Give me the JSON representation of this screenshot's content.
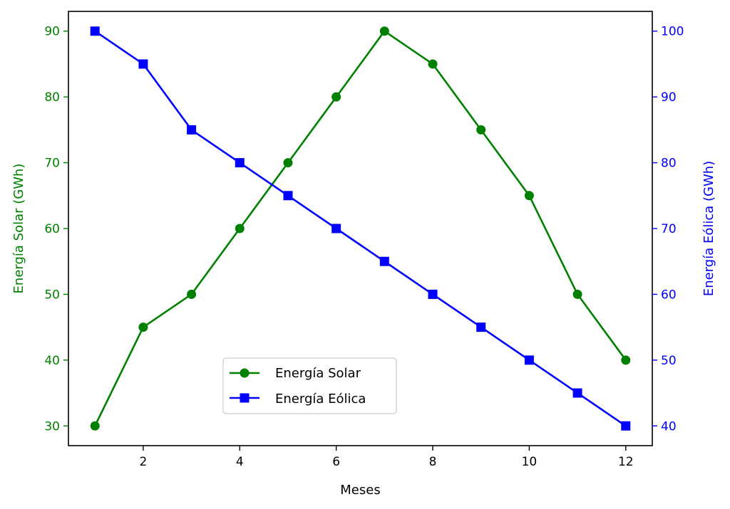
{
  "chart_data": {
    "type": "line",
    "title": "",
    "xlabel": "Meses",
    "ylabel_left": "Energía Solar (GWh)",
    "ylabel_right": "Energía Eólica (GWh)",
    "x": [
      1,
      2,
      3,
      4,
      5,
      6,
      7,
      8,
      9,
      10,
      11,
      12
    ],
    "xlim": [
      0.45,
      12.55
    ],
    "xticks": [
      2,
      4,
      6,
      8,
      10,
      12
    ],
    "ylim_left": [
      27,
      93
    ],
    "yticks_left": [
      30,
      40,
      50,
      60,
      70,
      80,
      90
    ],
    "ylim_right": [
      37,
      103
    ],
    "yticks_right": [
      40,
      50,
      60,
      70,
      80,
      90,
      100
    ],
    "grid": false,
    "legend_position": "lower-center",
    "series": [
      {
        "name": "Energía Solar",
        "axis": "left",
        "color": "#008000",
        "marker": "circle",
        "values": [
          30,
          45,
          50,
          60,
          70,
          80,
          90,
          85,
          75,
          65,
          50,
          40
        ]
      },
      {
        "name": "Energía Eólica",
        "axis": "right",
        "color": "#0000ff",
        "marker": "square",
        "values": [
          100,
          95,
          85,
          80,
          75,
          70,
          65,
          60,
          55,
          50,
          45,
          40
        ]
      }
    ]
  }
}
